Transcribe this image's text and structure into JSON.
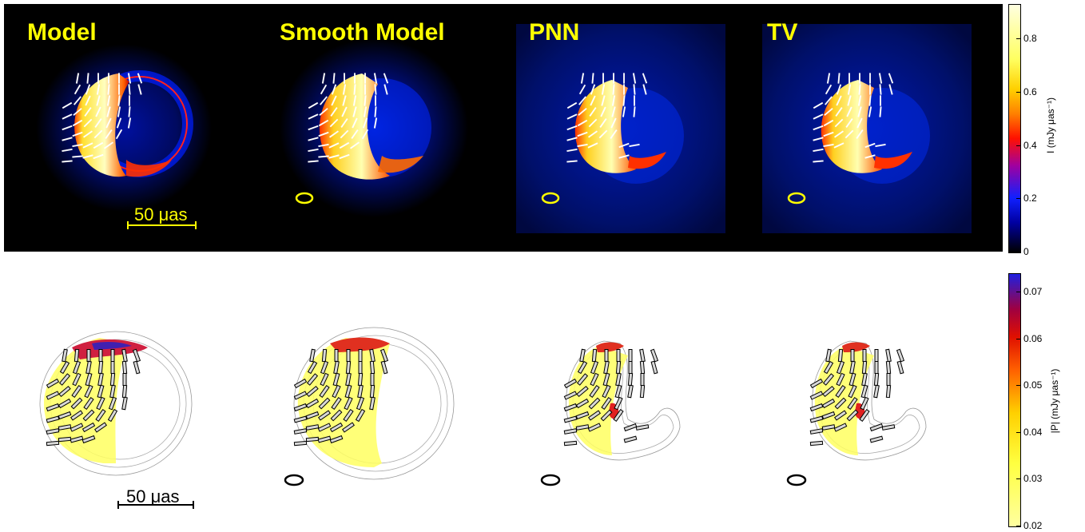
{
  "top_row": {
    "titles": [
      "Model",
      "Smooth Model",
      "PNN",
      "TV"
    ],
    "scale_bar_label": "50 μas"
  },
  "bottom_row": {
    "scale_bar_label": "50 μas"
  },
  "colorbar_intensity": {
    "label": "I   (mJy μas⁻¹)",
    "ticks": [
      "0",
      "0.2",
      "0.4",
      "0.6",
      "0.8"
    ],
    "tick_values": [
      0,
      0.2,
      0.4,
      0.6,
      0.8
    ],
    "range": [
      0,
      0.93
    ],
    "colormap": "afmhot-blue"
  },
  "colorbar_polarization": {
    "label": "|P|   (mJy μas⁻¹)",
    "ticks": [
      "0.02",
      "0.03",
      "0.04",
      "0.05",
      "0.06",
      "0.07"
    ],
    "tick_values": [
      0.02,
      0.03,
      0.04,
      0.05,
      0.06,
      0.07
    ],
    "range": [
      0.02,
      0.074
    ],
    "colormap": "yellow-red-blue"
  },
  "colors": {
    "title": "#ffff00",
    "background_top": "#000000",
    "beam_top": "#ffff00",
    "beam_bottom": "#000000"
  }
}
